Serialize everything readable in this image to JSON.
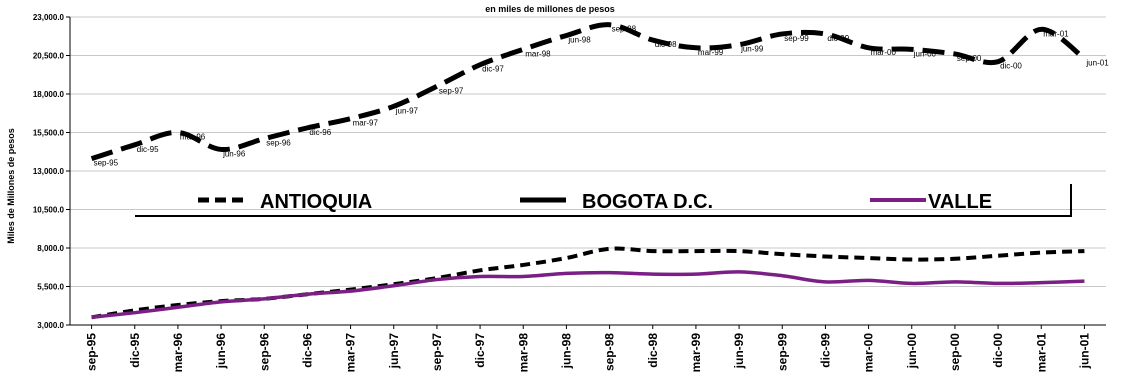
{
  "chart_data": {
    "type": "line",
    "title": "en miles de millones de pesos",
    "ylabel": "Miles de Millones de pesos",
    "ylim": [
      3000,
      23000
    ],
    "yticks": [
      "3,000.0",
      "5,500.0",
      "8,000.0",
      "10,500.0",
      "13,000.0",
      "15,500.0",
      "18,000.0",
      "20,500.0",
      "23,000.0"
    ],
    "ytick_values": [
      3000,
      5500,
      8000,
      10500,
      13000,
      15500,
      18000,
      20500,
      23000
    ],
    "grid": true,
    "legend_position": "center",
    "categories": [
      "sep-95",
      "dic-95",
      "mar-96",
      "jun-96",
      "sep-96",
      "dic-96",
      "mar-97",
      "jun-97",
      "sep-97",
      "dic-97",
      "mar-98",
      "jun-98",
      "sep-98",
      "dic-98",
      "mar-99",
      "jun-99",
      "sep-99",
      "dic-99",
      "mar-00",
      "jun-00",
      "sep-00",
      "dic-00",
      "mar-01",
      "jun-01"
    ],
    "series": [
      {
        "name": "BOGOTA D.C.",
        "color": "#000000",
        "style": "long-dash",
        "values": [
          13800,
          14700,
          15500,
          14400,
          15100,
          15800,
          16400,
          17200,
          18500,
          19900,
          20900,
          21800,
          22500,
          21500,
          21000,
          21200,
          21900,
          21900,
          21000,
          20900,
          20600,
          20100,
          22200,
          20300
        ],
        "labels": [
          "sep-95",
          "dic-95",
          "mar-96",
          "jun-96",
          "sep-96",
          "dic-96",
          "mar-97",
          "jun-97",
          "sep-97",
          "dic-97",
          "mar-98",
          "jun-98",
          "sep-98",
          "dic-98",
          "mar-99",
          "jun-99",
          "sep-99",
          "dic-99",
          "mar-00",
          "jun-00",
          "sep-00",
          "dic-00",
          "mar-01",
          "jun-01"
        ]
      },
      {
        "name": "ANTIOQUIA",
        "color": "#000000",
        "style": "short-dash",
        "values": [
          3500,
          3950,
          4300,
          4550,
          4700,
          5000,
          5300,
          5650,
          6050,
          6550,
          6900,
          7350,
          7950,
          7800,
          7800,
          7800,
          7600,
          7450,
          7350,
          7250,
          7300,
          7500,
          7700,
          7800
        ]
      },
      {
        "name": "VALLE",
        "color": "#7b1f86",
        "style": "solid",
        "values": [
          3500,
          3800,
          4150,
          4500,
          4700,
          5000,
          5200,
          5550,
          5950,
          6150,
          6150,
          6350,
          6400,
          6300,
          6300,
          6450,
          6200,
          5800,
          5900,
          5700,
          5800,
          5700,
          5750,
          5850
        ]
      }
    ]
  }
}
